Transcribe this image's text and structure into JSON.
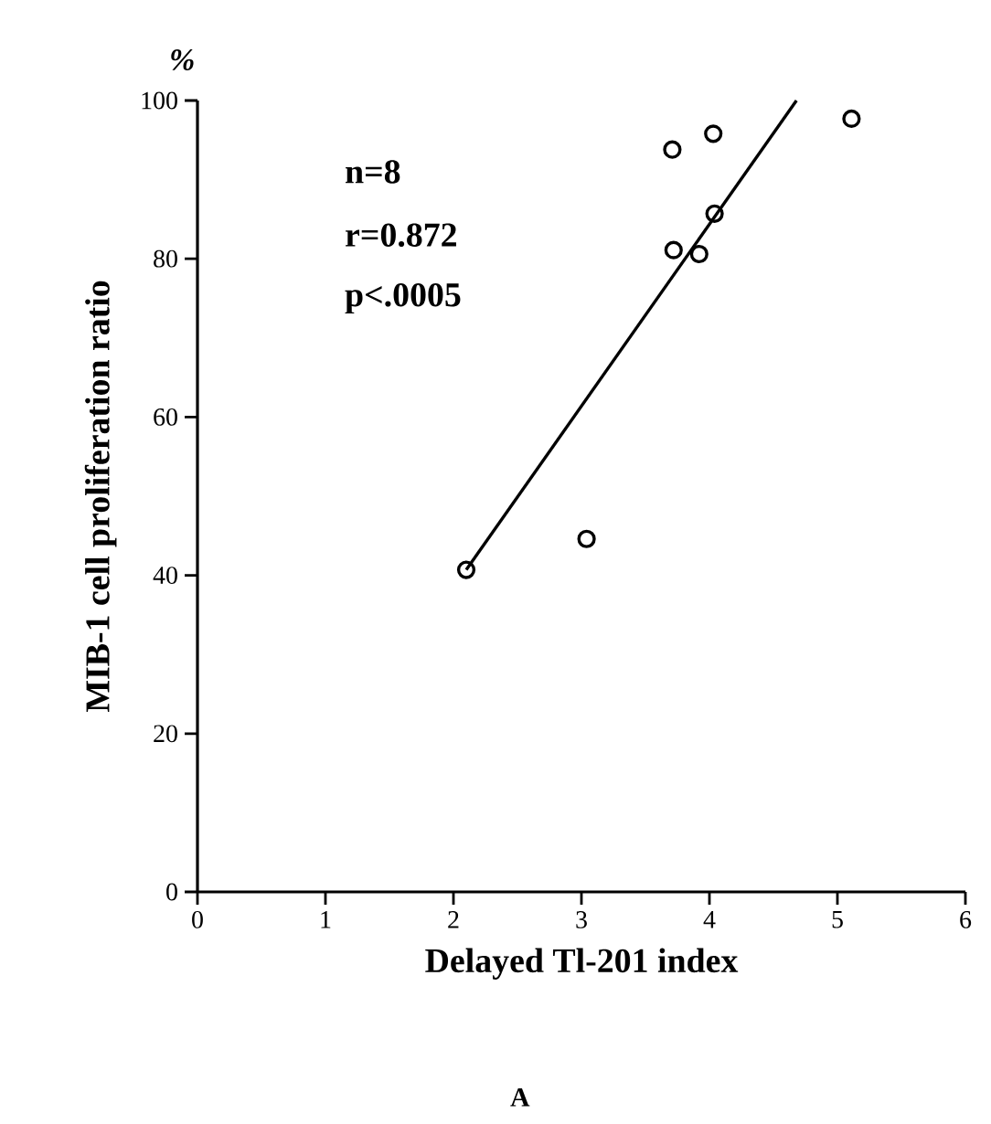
{
  "chart_data": {
    "type": "scatter",
    "xlabel": "Delayed Tl-201 index",
    "ylabel": "MIB-1 cell proliferation ratio",
    "annotations": [
      "n=8",
      "r=0.872",
      "p<.0005",
      "%",
      "A"
    ],
    "xlim": [
      0,
      6
    ],
    "ylim": [
      0,
      100
    ],
    "xticks": [
      0,
      1,
      2,
      3,
      4,
      5,
      6
    ],
    "yticks": [
      0,
      20,
      40,
      60,
      80,
      100
    ],
    "grid": false,
    "series": [
      {
        "marker": "circle",
        "color": "#000000",
        "x": [
          2.1,
          3.04,
          3.71,
          4.03,
          5.11,
          4.04,
          3.72,
          3.92
        ],
        "values": [
          40.7,
          44.6,
          93.8,
          95.8,
          97.7,
          85.7,
          81.1,
          80.6
        ]
      },
      {
        "type": "line",
        "marker": "none",
        "color": "#000000",
        "x": [
          2.1,
          4.68
        ],
        "values": [
          40.7,
          100
        ]
      }
    ]
  }
}
